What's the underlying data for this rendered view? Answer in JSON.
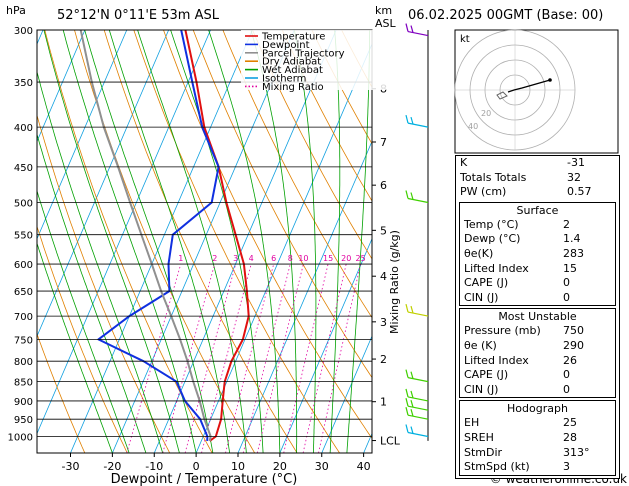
{
  "header": {
    "pressure_unit": "hPa",
    "location": "52°12'N  0°11'E  53m  ASL",
    "km_label": "km",
    "asl_label": "ASL",
    "datetime": "06.02.2025  00GMT  (Base: 00)"
  },
  "chart_data": {
    "type": "line",
    "title": "",
    "xlabel": "Dewpoint / Temperature (°C)",
    "ylabel": "hPa",
    "right_ylabel": "Mixing Ratio (g/kg)",
    "xlim": [
      -38,
      42
    ],
    "ylim": [
      1050,
      300
    ],
    "x_ticks": [
      -30,
      -20,
      -10,
      0,
      10,
      20,
      30,
      40
    ],
    "pressure_ticks": [
      300,
      350,
      400,
      450,
      500,
      550,
      600,
      650,
      700,
      750,
      800,
      850,
      900,
      950,
      1000
    ],
    "km_ticks": [
      {
        "label": "8",
        "p": 357
      },
      {
        "label": "7",
        "p": 418
      },
      {
        "label": "6",
        "p": 475
      },
      {
        "label": "5",
        "p": 543
      },
      {
        "label": "4",
        "p": 622
      },
      {
        "label": "3",
        "p": 712
      },
      {
        "label": "2",
        "p": 795
      },
      {
        "label": "1",
        "p": 902
      },
      {
        "label": "LCL",
        "p": 1012
      }
    ],
    "mixing_ratio_labels": [
      "1",
      "2",
      "3",
      "4",
      "6",
      "8",
      "10",
      "15",
      "20",
      "25"
    ],
    "legend": [
      {
        "name": "Temperature",
        "color": "#e01010"
      },
      {
        "name": "Dewpoint",
        "color": "#1030e0"
      },
      {
        "name": "Parcel Trajectory",
        "color": "#909090"
      },
      {
        "name": "Dry Adiabat",
        "color": "#e08000"
      },
      {
        "name": "Wet Adiabat",
        "color": "#00a000"
      },
      {
        "name": "Isotherm",
        "color": "#10a0e0"
      },
      {
        "name": "Mixing Ratio",
        "color": "#e000a0"
      }
    ],
    "legend_placement": "top-right",
    "series": [
      {
        "name": "Temperature",
        "color": "#e01010",
        "points": [
          [
            2,
            1013
          ],
          [
            3,
            1000
          ],
          [
            2.5,
            950
          ],
          [
            1,
            900
          ],
          [
            -0.5,
            850
          ],
          [
            -1,
            800
          ],
          [
            -0.5,
            750
          ],
          [
            -1.5,
            700
          ],
          [
            -4.5,
            650
          ],
          [
            -8,
            600
          ],
          [
            -13,
            550
          ],
          [
            -18.5,
            500
          ],
          [
            -24,
            450
          ],
          [
            -31.5,
            400
          ],
          [
            -38,
            350
          ],
          [
            -46,
            300
          ]
        ]
      },
      {
        "name": "Dewpoint",
        "color": "#1030e0",
        "points": [
          [
            1.4,
            1013
          ],
          [
            1,
            1000
          ],
          [
            -2.5,
            950
          ],
          [
            -8,
            900
          ],
          [
            -12,
            850
          ],
          [
            -22,
            800
          ],
          [
            -35,
            750
          ],
          [
            -30,
            700
          ],
          [
            -23,
            650
          ],
          [
            -26,
            600
          ],
          [
            -28,
            550
          ],
          [
            -22,
            500
          ],
          [
            -24,
            450
          ],
          [
            -32,
            400
          ],
          [
            -39,
            350
          ],
          [
            -47,
            300
          ]
        ]
      },
      {
        "name": "Parcel Trajectory",
        "color": "#909090",
        "points": [
          [
            2,
            1013
          ],
          [
            1.8,
            1000
          ],
          [
            -1.5,
            950
          ],
          [
            -4.5,
            900
          ],
          [
            -8,
            850
          ],
          [
            -11.5,
            800
          ],
          [
            -15.5,
            750
          ],
          [
            -20,
            700
          ],
          [
            -25,
            650
          ],
          [
            -30,
            600
          ],
          [
            -35.5,
            550
          ],
          [
            -41.5,
            500
          ],
          [
            -48,
            450
          ],
          [
            -55.5,
            400
          ],
          [
            -63,
            350
          ],
          [
            -71,
            300
          ]
        ]
      }
    ]
  },
  "indices": [
    {
      "label": "K",
      "value": "-31"
    },
    {
      "label": "Totals Totals",
      "value": "32"
    },
    {
      "label": "PW (cm)",
      "value": "0.57"
    }
  ],
  "surface": {
    "title": "Surface",
    "rows": [
      {
        "label": "Temp (°C)",
        "value": "2"
      },
      {
        "label": "Dewp (°C)",
        "value": "1.4"
      },
      {
        "label": "θe(K)",
        "value": "283"
      },
      {
        "label": "Lifted Index",
        "value": "15"
      },
      {
        "label": "CAPE (J)",
        "value": "0"
      },
      {
        "label": "CIN (J)",
        "value": "0"
      }
    ]
  },
  "most_unstable": {
    "title": "Most Unstable",
    "rows": [
      {
        "label": "Pressure (mb)",
        "value": "750"
      },
      {
        "label": "θe (K)",
        "value": "290"
      },
      {
        "label": "Lifted Index",
        "value": "26"
      },
      {
        "label": "CAPE (J)",
        "value": "0"
      },
      {
        "label": "CIN (J)",
        "value": "0"
      }
    ]
  },
  "hodograph": {
    "title": "Hodograph",
    "kt_label": "kt",
    "ring_labels": [
      "20",
      "40"
    ],
    "rows": [
      {
        "label": "EH",
        "value": "25"
      },
      {
        "label": "SREH",
        "value": "28"
      },
      {
        "label": "StmDir",
        "value": "313°"
      },
      {
        "label": "StmSpd (kt)",
        "value": "3"
      }
    ]
  },
  "footer": {
    "copyright": "© weatheronline.co.uk"
  },
  "colors": {
    "accent_cyan": "#00b0e0",
    "wind_green": "#40d000",
    "wind_purple": "#8000c0",
    "wind_yellow": "#c0d000"
  }
}
